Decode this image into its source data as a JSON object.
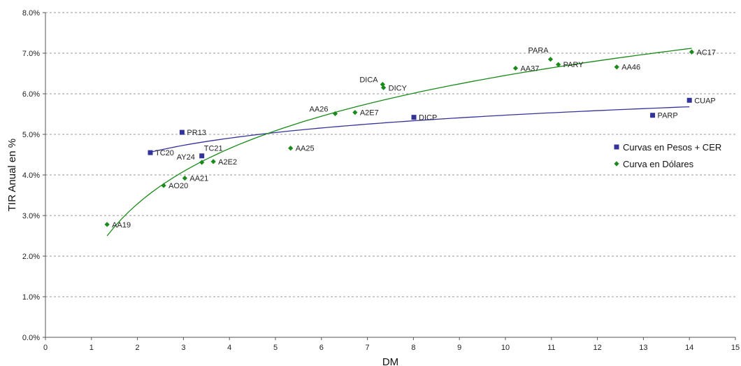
{
  "chart_data": {
    "type": "scatter",
    "title": "",
    "xlabel": "DM",
    "ylabel": "TIR Anual en %",
    "xlim": [
      0,
      15
    ],
    "ylim": [
      0,
      8
    ],
    "x_ticks": [
      "0",
      "1",
      "2",
      "3",
      "4",
      "5",
      "6",
      "7",
      "8",
      "9",
      "10",
      "11",
      "12",
      "13",
      "14",
      "15"
    ],
    "y_ticks": [
      "0.0%",
      "1.0%",
      "2.0%",
      "3.0%",
      "4.0%",
      "5.0%",
      "6.0%",
      "7.0%",
      "8.0%"
    ],
    "grid": "horizontal-dashed",
    "legend_position": "right",
    "series": [
      {
        "name": "Curvas en Pesos + CER",
        "marker": "square",
        "color": "#33339a",
        "points": [
          {
            "label": "TC20",
            "x": 2.28,
            "y": 4.55
          },
          {
            "label": "PR13",
            "x": 2.97,
            "y": 5.05
          },
          {
            "label": "TC21",
            "x": 3.4,
            "y": 4.47
          },
          {
            "label": "DICP",
            "x": 8.01,
            "y": 5.42
          },
          {
            "label": "PARP",
            "x": 13.2,
            "y": 5.47
          },
          {
            "label": "CUAP",
            "x": 14.0,
            "y": 5.84
          }
        ],
        "trend": {
          "type": "logarithmic",
          "color": "#33339a",
          "x_range": [
            2.28,
            14.0
          ],
          "y_range": [
            4.56,
            5.68
          ]
        }
      },
      {
        "name": "Curva en Dólares",
        "marker": "diamond",
        "color": "#1a8a1a",
        "points": [
          {
            "label": "AA19",
            "x": 1.34,
            "y": 2.78
          },
          {
            "label": "AO20",
            "x": 2.57,
            "y": 3.74
          },
          {
            "label": "AA21",
            "x": 3.03,
            "y": 3.92
          },
          {
            "label": "AY24",
            "x": 3.4,
            "y": 4.31
          },
          {
            "label": "A2E2",
            "x": 3.65,
            "y": 4.33
          },
          {
            "label": "AA25",
            "x": 5.33,
            "y": 4.66
          },
          {
            "label": "AA26",
            "x": 6.3,
            "y": 5.51
          },
          {
            "label": "A2E7",
            "x": 6.73,
            "y": 5.54
          },
          {
            "label": "DICA",
            "x": 7.33,
            "y": 6.23
          },
          {
            "label": "DICY",
            "x": 7.35,
            "y": 6.15
          },
          {
            "label": "AA37",
            "x": 10.22,
            "y": 6.63
          },
          {
            "label": "PARA",
            "x": 10.98,
            "y": 6.85
          },
          {
            "label": "PARY",
            "x": 11.15,
            "y": 6.72
          },
          {
            "label": "AA46",
            "x": 12.42,
            "y": 6.66
          },
          {
            "label": "AC17",
            "x": 14.05,
            "y": 7.03
          }
        ],
        "trend": {
          "type": "logarithmic",
          "color": "#1a8a1a",
          "x_range": [
            1.34,
            14.05
          ],
          "y_range": [
            2.5,
            7.12
          ]
        }
      }
    ]
  }
}
